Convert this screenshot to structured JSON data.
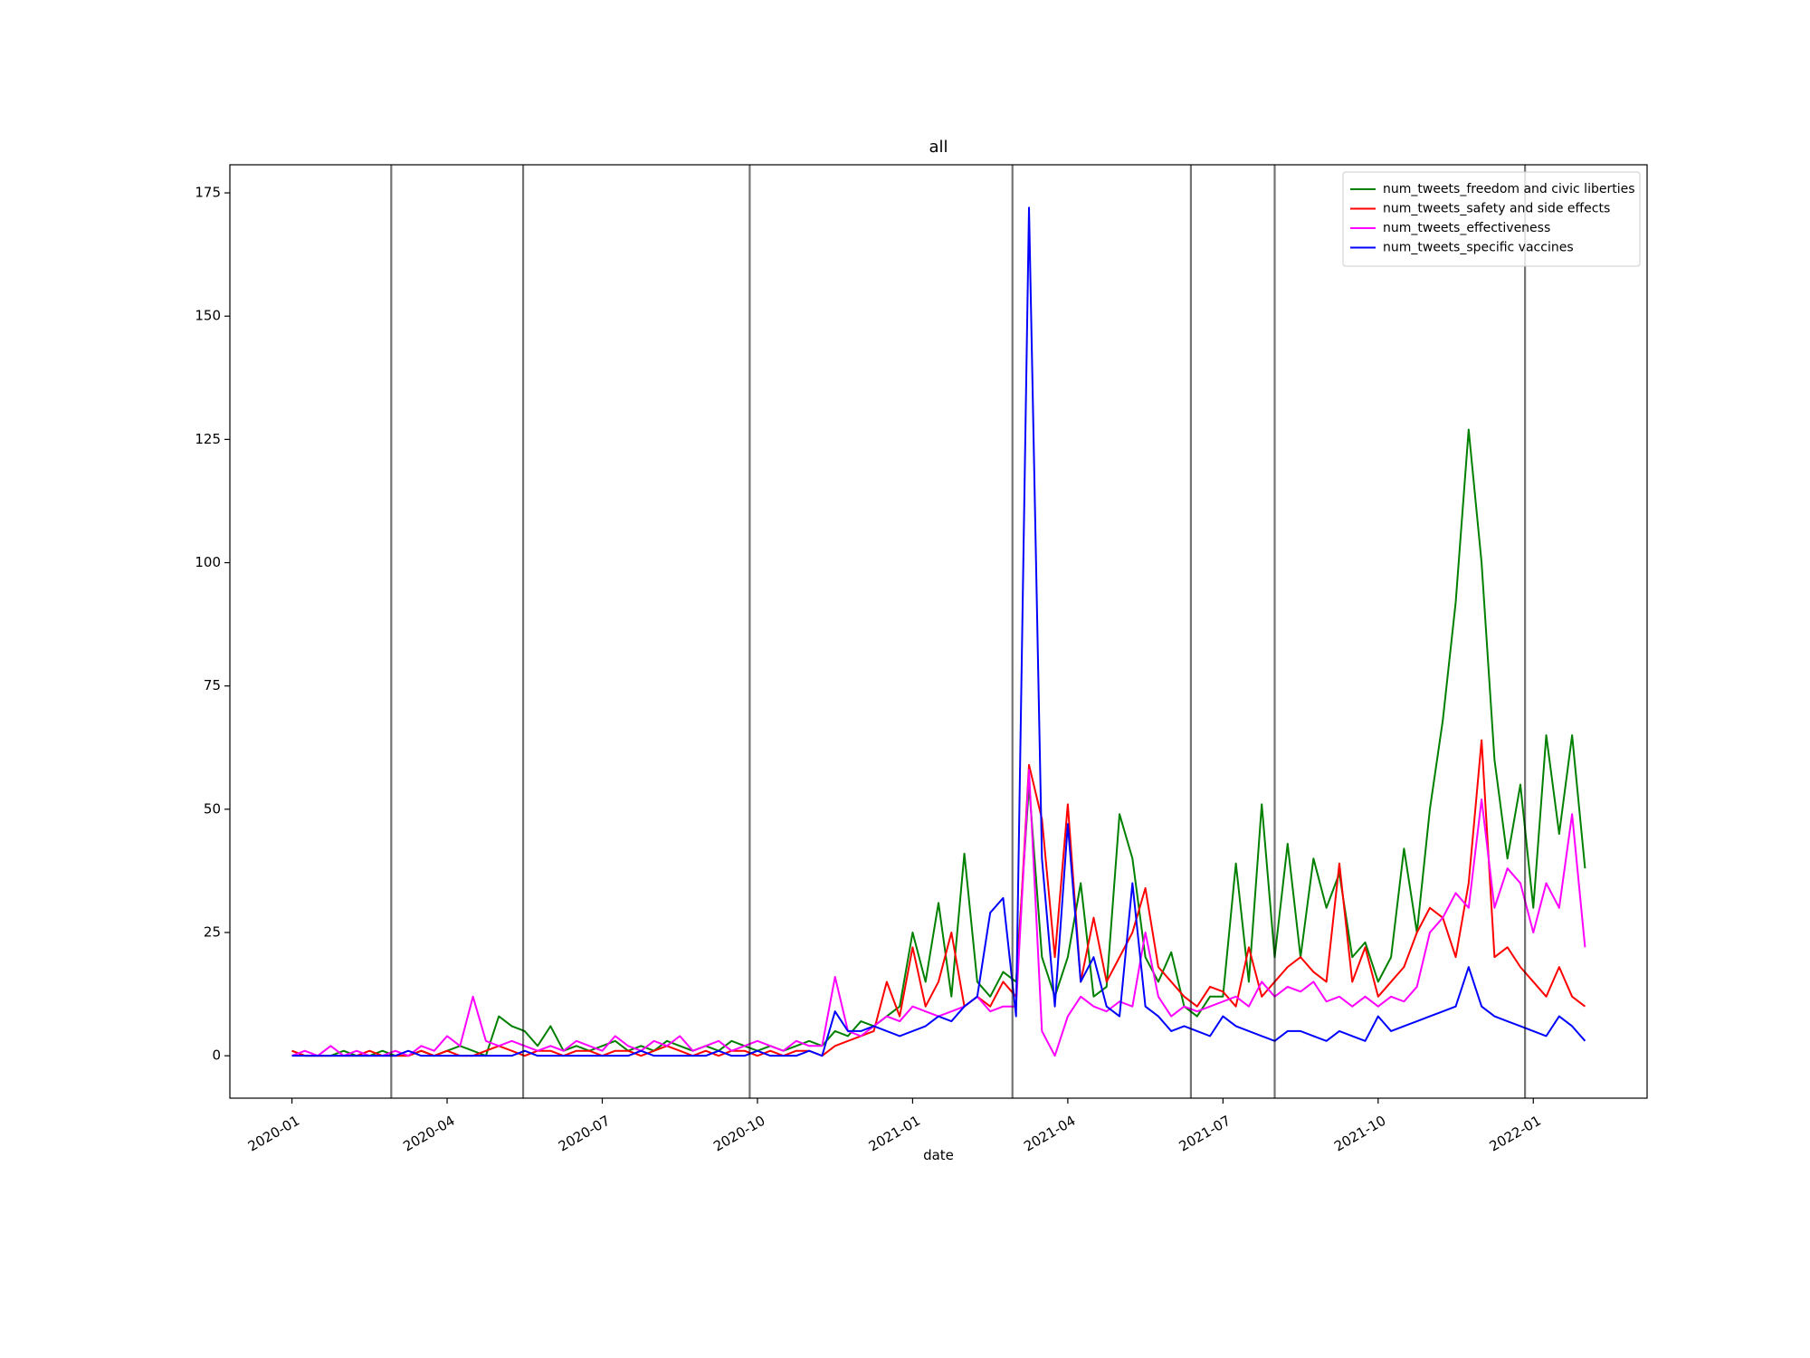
{
  "chart_data": {
    "type": "line",
    "title": "all",
    "x_label": "date",
    "x": [
      0,
      0.25,
      0.5,
      0.75,
      1,
      1.25,
      1.5,
      1.75,
      2,
      2.25,
      2.5,
      2.75,
      3,
      3.25,
      3.5,
      3.75,
      4,
      4.25,
      4.5,
      4.75,
      5,
      5.25,
      5.5,
      5.75,
      6,
      6.25,
      6.5,
      6.75,
      7,
      7.25,
      7.5,
      7.75,
      8,
      8.25,
      8.5,
      8.75,
      9,
      9.25,
      9.5,
      9.75,
      10,
      10.25,
      10.5,
      10.75,
      11,
      11.25,
      11.5,
      11.75,
      12,
      12.25,
      12.5,
      12.75,
      13,
      13.25,
      13.5,
      13.75,
      14,
      14.25,
      14.5,
      14.75,
      15,
      15.25,
      15.5,
      15.75,
      16,
      16.25,
      16.5,
      16.75,
      17,
      17.25,
      17.5,
      17.75,
      18,
      18.25,
      18.5,
      18.75,
      19,
      19.25,
      19.5,
      19.75,
      20,
      20.25,
      20.5,
      20.75,
      21,
      21.25,
      21.5,
      21.75,
      22,
      22.25,
      22.5,
      22.75,
      23,
      23.25,
      23.5,
      23.75,
      24,
      24.25,
      24.5,
      24.75,
      25
    ],
    "series": [
      {
        "name": "num_tweets_freedom and civic liberties",
        "color": "#008000",
        "values": [
          1,
          0,
          0,
          0,
          1,
          0,
          0,
          1,
          0,
          0,
          1,
          0,
          1,
          2,
          1,
          0,
          8,
          6,
          5,
          2,
          6,
          1,
          2,
          1,
          2,
          3,
          1,
          2,
          1,
          3,
          2,
          1,
          2,
          1,
          3,
          2,
          1,
          2,
          1,
          2,
          3,
          2,
          5,
          4,
          7,
          6,
          8,
          10,
          25,
          15,
          31,
          12,
          41,
          15,
          12,
          17,
          15,
          55,
          20,
          12,
          20,
          35,
          12,
          14,
          49,
          40,
          20,
          15,
          21,
          10,
          8,
          12,
          12,
          39,
          15,
          51,
          20,
          43,
          20,
          40,
          30,
          37,
          20,
          23,
          15,
          20,
          42,
          25,
          50,
          68,
          92,
          127,
          100,
          60,
          40,
          55,
          30,
          65,
          45,
          65,
          38
        ]
      },
      {
        "name": "num_tweets_safety and side effects",
        "color": "#ff0000",
        "values": [
          1,
          0,
          0,
          0,
          0,
          0,
          1,
          0,
          0,
          0,
          1,
          0,
          1,
          0,
          0,
          1,
          2,
          1,
          0,
          1,
          1,
          0,
          1,
          1,
          0,
          1,
          1,
          0,
          1,
          2,
          1,
          0,
          1,
          0,
          1,
          1,
          0,
          1,
          0,
          1,
          1,
          0,
          2,
          3,
          4,
          5,
          15,
          8,
          22,
          10,
          15,
          25,
          10,
          12,
          10,
          15,
          12,
          59,
          48,
          20,
          51,
          15,
          28,
          15,
          20,
          25,
          34,
          18,
          15,
          12,
          10,
          14,
          13,
          10,
          22,
          12,
          15,
          18,
          20,
          17,
          15,
          39,
          15,
          22,
          12,
          15,
          18,
          25,
          30,
          28,
          20,
          35,
          64,
          20,
          22,
          18,
          15,
          12,
          18,
          12,
          10
        ]
      },
      {
        "name": "num_tweets_effectiveness",
        "color": "#ff00ff",
        "values": [
          0,
          1,
          0,
          2,
          0,
          1,
          0,
          0,
          1,
          0,
          2,
          1,
          4,
          2,
          12,
          3,
          2,
          3,
          2,
          1,
          2,
          1,
          3,
          2,
          1,
          4,
          2,
          1,
          3,
          2,
          4,
          1,
          2,
          3,
          1,
          2,
          3,
          2,
          1,
          3,
          2,
          2,
          16,
          5,
          4,
          6,
          8,
          7,
          10,
          9,
          8,
          9,
          10,
          12,
          9,
          10,
          10,
          58,
          5,
          0,
          8,
          12,
          10,
          9,
          11,
          10,
          25,
          12,
          8,
          10,
          9,
          10,
          11,
          12,
          10,
          15,
          12,
          14,
          13,
          15,
          11,
          12,
          10,
          12,
          10,
          12,
          11,
          14,
          25,
          28,
          33,
          30,
          52,
          30,
          38,
          35,
          25,
          35,
          30,
          49,
          22
        ]
      },
      {
        "name": "num_tweets_specific vaccines",
        "color": "#0000ff",
        "values": [
          0,
          0,
          0,
          0,
          0,
          0,
          0,
          0,
          0,
          1,
          0,
          0,
          0,
          0,
          0,
          0,
          0,
          0,
          1,
          0,
          0,
          0,
          0,
          0,
          0,
          0,
          0,
          1,
          0,
          0,
          0,
          0,
          0,
          1,
          0,
          0,
          1,
          0,
          0,
          0,
          1,
          0,
          9,
          5,
          5,
          6,
          5,
          4,
          5,
          6,
          8,
          7,
          10,
          12,
          29,
          32,
          8,
          172,
          40,
          10,
          47,
          15,
          20,
          10,
          8,
          35,
          10,
          8,
          5,
          6,
          5,
          4,
          8,
          6,
          5,
          4,
          3,
          5,
          5,
          4,
          3,
          5,
          4,
          3,
          8,
          5,
          6,
          7,
          8,
          9,
          10,
          18,
          10,
          8,
          7,
          6,
          5,
          4,
          8,
          6,
          3
        ]
      }
    ],
    "vlines": [
      1.92,
      4.47,
      8.85,
      13.93,
      17.38,
      19.0,
      23.84
    ],
    "xlim": [
      -1.2,
      26.2
    ],
    "xticks": [
      {
        "value": 0,
        "label": "2020-01"
      },
      {
        "value": 3,
        "label": "2020-04"
      },
      {
        "value": 6,
        "label": "2020-07"
      },
      {
        "value": 9,
        "label": "2020-10"
      },
      {
        "value": 12,
        "label": "2021-01"
      },
      {
        "value": 15,
        "label": "2021-04"
      },
      {
        "value": 18,
        "label": "2021-07"
      },
      {
        "value": 21,
        "label": "2021-10"
      },
      {
        "value": 24,
        "label": "2022-01"
      }
    ],
    "ylim": [
      -8.6,
      180.7
    ],
    "yticks": [
      0,
      25,
      50,
      75,
      100,
      125,
      150,
      175
    ],
    "legend": "upper right"
  }
}
